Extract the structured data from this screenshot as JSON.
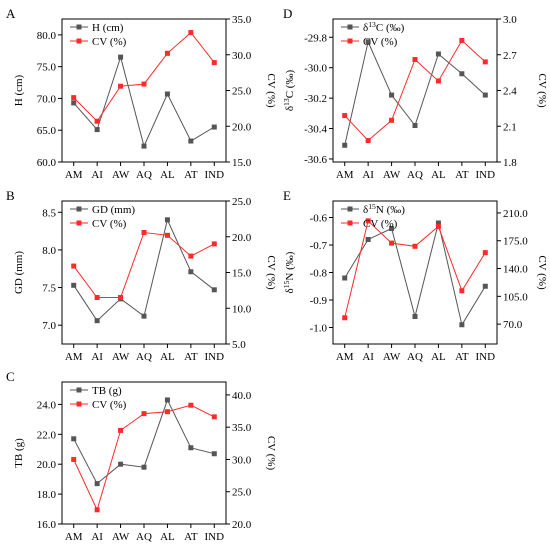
{
  "chart_data": [
    {
      "id": "A",
      "type": "line",
      "panel_label": "A",
      "categories": [
        "AM",
        "AI",
        "AW",
        "AQ",
        "AL",
        "AT",
        "IND"
      ],
      "left_axis": {
        "label_parts": [
          {
            "t": "H (cm)"
          }
        ],
        "ylim": [
          60.0,
          82.5
        ],
        "ticks": [
          "60.0",
          "65.0",
          "70.0",
          "75.0",
          "80.0"
        ]
      },
      "right_axis": {
        "label_parts": [
          {
            "t": "CV (%)"
          }
        ],
        "ylim": [
          15.0,
          35.0
        ],
        "ticks": [
          "15.0",
          "20.0",
          "25.0",
          "30.0",
          "35.0"
        ]
      },
      "series": [
        {
          "name_parts": [
            {
              "t": "H (cm)"
            }
          ],
          "axis": "left",
          "color": "#555555",
          "marker": "square",
          "values": [
            69.3,
            65.1,
            76.5,
            62.5,
            70.7,
            63.3,
            65.5
          ]
        },
        {
          "name_parts": [
            {
              "t": "CV (%)"
            }
          ],
          "axis": "right",
          "color": "#ff2a2a",
          "marker": "square",
          "values": [
            24.0,
            20.7,
            25.6,
            25.9,
            30.2,
            33.1,
            28.9
          ]
        }
      ]
    },
    {
      "id": "B",
      "type": "line",
      "panel_label": "B",
      "categories": [
        "AM",
        "AI",
        "AW",
        "AQ",
        "AL",
        "AT",
        "IND"
      ],
      "left_axis": {
        "label_parts": [
          {
            "t": "GD (mm)"
          }
        ],
        "ylim": [
          6.75,
          8.65
        ],
        "ticks": [
          "7.0",
          "7.5",
          "8.0",
          "8.5"
        ]
      },
      "right_axis": {
        "label_parts": [
          {
            "t": "CV (%)"
          }
        ],
        "ylim": [
          5.0,
          25.0
        ],
        "ticks": [
          "5.0",
          "10.0",
          "15.0",
          "20.0",
          "25.0"
        ]
      },
      "series": [
        {
          "name_parts": [
            {
              "t": "GD (mm)"
            }
          ],
          "axis": "left",
          "color": "#555555",
          "marker": "square",
          "values": [
            7.53,
            7.06,
            7.35,
            7.12,
            8.4,
            7.71,
            7.47
          ]
        },
        {
          "name_parts": [
            {
              "t": "CV (%)"
            }
          ],
          "axis": "right",
          "color": "#ff2a2a",
          "marker": "square",
          "values": [
            15.9,
            11.5,
            11.5,
            20.6,
            20.2,
            17.3,
            19.0
          ]
        }
      ]
    },
    {
      "id": "C",
      "type": "line",
      "panel_label": "C",
      "categories": [
        "AM",
        "AI",
        "AW",
        "AQ",
        "AL",
        "AT",
        "IND"
      ],
      "left_axis": {
        "label_parts": [
          {
            "t": "TB (g)"
          }
        ],
        "ylim": [
          16.0,
          25.5
        ],
        "ticks": [
          "16.0",
          "18.0",
          "20.0",
          "22.0",
          "24.0"
        ]
      },
      "right_axis": {
        "label_parts": [
          {
            "t": "CV (%)"
          }
        ],
        "ylim": [
          20.0,
          42.0
        ],
        "ticks": [
          "20.0",
          "25.0",
          "30.0",
          "35.0",
          "40.0"
        ]
      },
      "series": [
        {
          "name_parts": [
            {
              "t": "TB (g)"
            }
          ],
          "axis": "left",
          "color": "#555555",
          "marker": "square",
          "values": [
            21.7,
            18.7,
            20.0,
            19.8,
            24.3,
            21.1,
            20.7
          ]
        },
        {
          "name_parts": [
            {
              "t": "CV (%)"
            }
          ],
          "axis": "right",
          "color": "#ff2a2a",
          "marker": "square",
          "values": [
            30.0,
            22.2,
            34.5,
            37.1,
            37.4,
            38.4,
            36.6
          ]
        }
      ]
    },
    {
      "id": "D",
      "type": "line",
      "panel_label": "D",
      "categories": [
        "AM",
        "AI",
        "AW",
        "AQ",
        "AL",
        "AT",
        "IND"
      ],
      "left_axis": {
        "label_parts": [
          {
            "t": "δ"
          },
          {
            "t": "13",
            "sup": true
          },
          {
            "t": "C (‰)"
          }
        ],
        "ylim": [
          -30.62,
          -29.68
        ],
        "ticks": [
          "-30.6",
          "-30.4",
          "-30.2",
          "-30.0",
          "-29.8"
        ]
      },
      "right_axis": {
        "label_parts": [
          {
            "t": "CV (%)"
          }
        ],
        "ylim": [
          1.8,
          3.0
        ],
        "ticks": [
          "1.8",
          "2.1",
          "2.4",
          "2.7",
          "3.0"
        ]
      },
      "series": [
        {
          "name_parts": [
            {
              "t": "δ"
            },
            {
              "t": "13",
              "sup": true
            },
            {
              "t": "C (‰)"
            }
          ],
          "axis": "left",
          "color": "#555555",
          "marker": "square",
          "values": [
            -30.51,
            -29.83,
            -30.18,
            -30.38,
            -29.91,
            -30.04,
            -30.18
          ]
        },
        {
          "name_parts": [
            {
              "t": "CV (%)"
            }
          ],
          "axis": "right",
          "color": "#ff2a2a",
          "marker": "square",
          "values": [
            2.19,
            1.98,
            2.15,
            2.66,
            2.48,
            2.82,
            2.64
          ]
        }
      ]
    },
    {
      "id": "E",
      "type": "line",
      "panel_label": "E",
      "categories": [
        "AM",
        "AI",
        "AW",
        "AQ",
        "AL",
        "AT",
        "IND"
      ],
      "left_axis": {
        "label_parts": [
          {
            "t": "δ"
          },
          {
            "t": "15",
            "sup": true
          },
          {
            "t": "N (‰)"
          }
        ],
        "ylim": [
          -1.06,
          -0.54
        ],
        "ticks": [
          "-1.0",
          "-0.9",
          "-0.8",
          "-0.7",
          "-0.6"
        ]
      },
      "right_axis": {
        "label_parts": [
          {
            "t": "CV (%)"
          }
        ],
        "ylim": [
          45.0,
          225.0
        ],
        "ticks": [
          "70.0",
          "105.0",
          "140.0",
          "175.0",
          "210.0"
        ]
      },
      "series": [
        {
          "name_parts": [
            {
              "t": "δ"
            },
            {
              "t": "15",
              "sup": true
            },
            {
              "t": "N (‰)"
            }
          ],
          "axis": "left",
          "color": "#555555",
          "marker": "square",
          "values": [
            -0.82,
            -0.68,
            -0.64,
            -0.96,
            -0.62,
            -0.99,
            -0.85
          ]
        },
        {
          "name_parts": [
            {
              "t": "CV (%)"
            }
          ],
          "axis": "right",
          "color": "#ff2a2a",
          "marker": "square",
          "values": [
            78.0,
            200.0,
            172.0,
            168.0,
            193.0,
            112.0,
            160.0
          ]
        }
      ]
    }
  ]
}
